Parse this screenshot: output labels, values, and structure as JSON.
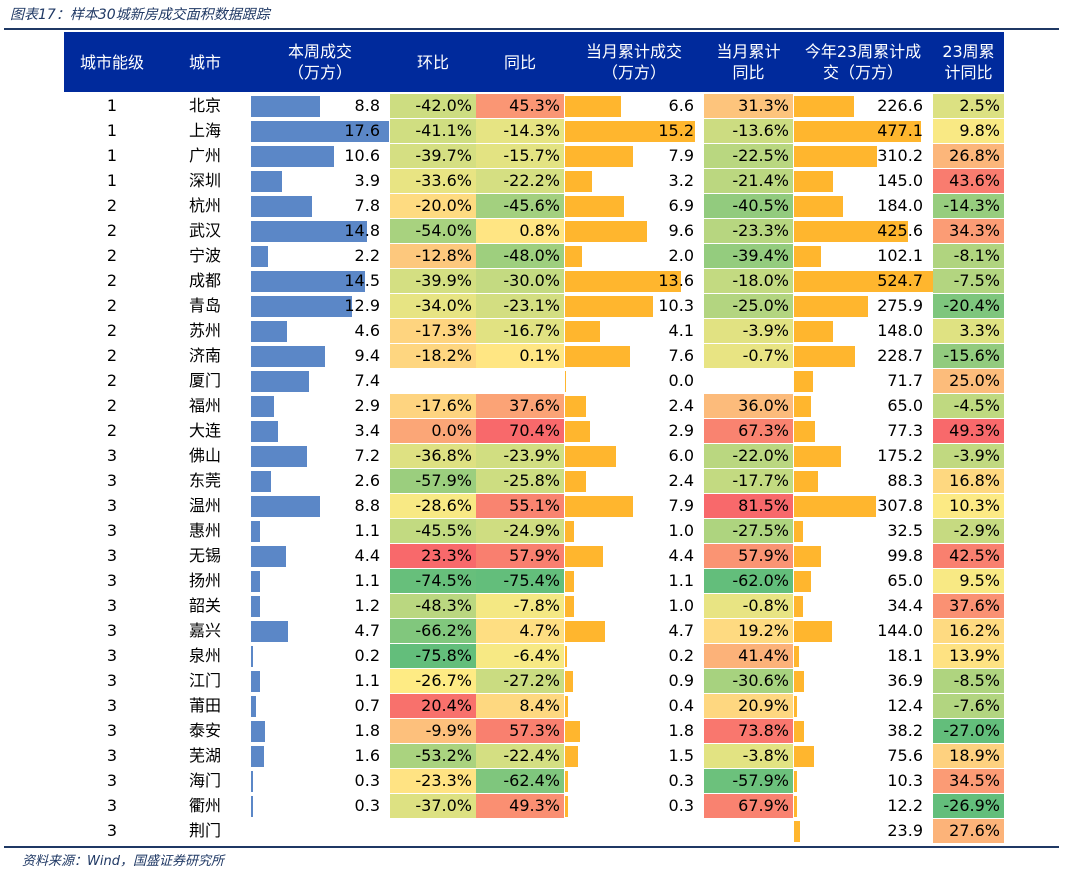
{
  "title": "图表17：样本30城新房成交面积数据跟踪",
  "source": "资料来源：Wind，国盛证券研究所",
  "colors": {
    "header_bg": "#002a9c",
    "header_text": "#ffffff",
    "bar_weekly": "#5b87c7",
    "bar_month": "#ffb62e",
    "scale_low": "#63be7b",
    "scale_mid": "#ffeb84",
    "scale_high": "#f8696b"
  },
  "columns": [
    "城市能级",
    "城市",
    "本周成交\n（万方）",
    "环比",
    "同比",
    "当月累计成交\n（万方）",
    "当月累计\n同比",
    "今年23周累计成\n交（万方）",
    "23周累\n计同比"
  ],
  "rows": [
    {
      "tier": "1",
      "city": "北京",
      "weekly": "8.8",
      "wow": "-42.0%",
      "yoy": "45.3%",
      "month": "6.6",
      "month_yoy": "31.3%",
      "ytd": "226.6",
      "ytd_yoy": "2.5%"
    },
    {
      "tier": "1",
      "city": "上海",
      "weekly": "17.6",
      "wow": "-41.1%",
      "yoy": "-14.3%",
      "month": "15.2",
      "month_yoy": "-13.6%",
      "ytd": "477.1",
      "ytd_yoy": "9.8%"
    },
    {
      "tier": "1",
      "city": "广州",
      "weekly": "10.6",
      "wow": "-39.7%",
      "yoy": "-15.7%",
      "month": "7.9",
      "month_yoy": "-22.5%",
      "ytd": "310.2",
      "ytd_yoy": "26.8%"
    },
    {
      "tier": "1",
      "city": "深圳",
      "weekly": "3.9",
      "wow": "-33.6%",
      "yoy": "-22.2%",
      "month": "3.2",
      "month_yoy": "-21.4%",
      "ytd": "145.0",
      "ytd_yoy": "43.6%"
    },
    {
      "tier": "2",
      "city": "杭州",
      "weekly": "7.8",
      "wow": "-20.0%",
      "yoy": "-45.6%",
      "month": "6.9",
      "month_yoy": "-40.5%",
      "ytd": "184.0",
      "ytd_yoy": "-14.3%"
    },
    {
      "tier": "2",
      "city": "武汉",
      "weekly": "14.8",
      "wow": "-54.0%",
      "yoy": "0.8%",
      "month": "9.6",
      "month_yoy": "-23.3%",
      "ytd": "425.6",
      "ytd_yoy": "34.3%"
    },
    {
      "tier": "2",
      "city": "宁波",
      "weekly": "2.2",
      "wow": "-12.8%",
      "yoy": "-48.0%",
      "month": "2.0",
      "month_yoy": "-39.4%",
      "ytd": "102.1",
      "ytd_yoy": "-8.1%"
    },
    {
      "tier": "2",
      "city": "成都",
      "weekly": "14.5",
      "wow": "-39.9%",
      "yoy": "-30.0%",
      "month": "13.6",
      "month_yoy": "-18.0%",
      "ytd": "524.7",
      "ytd_yoy": "-7.5%"
    },
    {
      "tier": "2",
      "city": "青岛",
      "weekly": "12.9",
      "wow": "-34.0%",
      "yoy": "-23.1%",
      "month": "10.3",
      "month_yoy": "-25.0%",
      "ytd": "275.9",
      "ytd_yoy": "-20.4%"
    },
    {
      "tier": "2",
      "city": "苏州",
      "weekly": "4.6",
      "wow": "-17.3%",
      "yoy": "-16.7%",
      "month": "4.1",
      "month_yoy": "-3.9%",
      "ytd": "148.0",
      "ytd_yoy": "3.3%"
    },
    {
      "tier": "2",
      "city": "济南",
      "weekly": "9.4",
      "wow": "-18.2%",
      "yoy": "0.1%",
      "month": "7.6",
      "month_yoy": "-0.7%",
      "ytd": "228.7",
      "ytd_yoy": "-15.6%"
    },
    {
      "tier": "2",
      "city": "厦门",
      "weekly": "7.4",
      "wow": "",
      "yoy": "",
      "month": "0.0",
      "month_yoy": "",
      "ytd": "71.7",
      "ytd_yoy": "25.0%"
    },
    {
      "tier": "2",
      "city": "福州",
      "weekly": "2.9",
      "wow": "-17.6%",
      "yoy": "37.6%",
      "month": "2.4",
      "month_yoy": "36.0%",
      "ytd": "65.0",
      "ytd_yoy": "-4.5%"
    },
    {
      "tier": "2",
      "city": "大连",
      "weekly": "3.4",
      "wow": "0.0%",
      "yoy": "70.4%",
      "month": "2.9",
      "month_yoy": "67.3%",
      "ytd": "77.3",
      "ytd_yoy": "49.3%"
    },
    {
      "tier": "3",
      "city": "佛山",
      "weekly": "7.2",
      "wow": "-36.8%",
      "yoy": "-23.9%",
      "month": "6.0",
      "month_yoy": "-22.0%",
      "ytd": "175.2",
      "ytd_yoy": "-3.9%"
    },
    {
      "tier": "3",
      "city": "东莞",
      "weekly": "2.6",
      "wow": "-57.9%",
      "yoy": "-25.8%",
      "month": "2.4",
      "month_yoy": "-17.7%",
      "ytd": "88.3",
      "ytd_yoy": "16.8%"
    },
    {
      "tier": "3",
      "city": "温州",
      "weekly": "8.8",
      "wow": "-28.6%",
      "yoy": "55.1%",
      "month": "7.9",
      "month_yoy": "81.5%",
      "ytd": "307.8",
      "ytd_yoy": "10.3%"
    },
    {
      "tier": "3",
      "city": "惠州",
      "weekly": "1.1",
      "wow": "-45.5%",
      "yoy": "-24.9%",
      "month": "1.0",
      "month_yoy": "-27.5%",
      "ytd": "32.5",
      "ytd_yoy": "-2.9%"
    },
    {
      "tier": "3",
      "city": "无锡",
      "weekly": "4.4",
      "wow": "23.3%",
      "yoy": "57.9%",
      "month": "4.4",
      "month_yoy": "57.9%",
      "ytd": "99.8",
      "ytd_yoy": "42.5%"
    },
    {
      "tier": "3",
      "city": "扬州",
      "weekly": "1.1",
      "wow": "-74.5%",
      "yoy": "-75.4%",
      "month": "1.1",
      "month_yoy": "-62.0%",
      "ytd": "65.0",
      "ytd_yoy": "9.5%"
    },
    {
      "tier": "3",
      "city": "韶关",
      "weekly": "1.2",
      "wow": "-48.3%",
      "yoy": "-7.8%",
      "month": "1.0",
      "month_yoy": "-0.8%",
      "ytd": "34.4",
      "ytd_yoy": "37.6%"
    },
    {
      "tier": "3",
      "city": "嘉兴",
      "weekly": "4.7",
      "wow": "-66.2%",
      "yoy": "4.7%",
      "month": "4.7",
      "month_yoy": "19.2%",
      "ytd": "144.0",
      "ytd_yoy": "16.2%"
    },
    {
      "tier": "3",
      "city": "泉州",
      "weekly": "0.2",
      "wow": "-75.8%",
      "yoy": "-6.4%",
      "month": "0.2",
      "month_yoy": "41.4%",
      "ytd": "18.1",
      "ytd_yoy": "13.9%"
    },
    {
      "tier": "3",
      "city": "江门",
      "weekly": "1.1",
      "wow": "-26.7%",
      "yoy": "-27.2%",
      "month": "0.9",
      "month_yoy": "-30.6%",
      "ytd": "36.9",
      "ytd_yoy": "-8.5%"
    },
    {
      "tier": "3",
      "city": "莆田",
      "weekly": "0.7",
      "wow": "20.4%",
      "yoy": "8.4%",
      "month": "0.4",
      "month_yoy": "20.9%",
      "ytd": "12.4",
      "ytd_yoy": "-7.6%"
    },
    {
      "tier": "3",
      "city": "泰安",
      "weekly": "1.8",
      "wow": "-9.9%",
      "yoy": "57.3%",
      "month": "1.8",
      "month_yoy": "73.8%",
      "ytd": "38.2",
      "ytd_yoy": "-27.0%"
    },
    {
      "tier": "3",
      "city": "芜湖",
      "weekly": "1.6",
      "wow": "-53.2%",
      "yoy": "-22.4%",
      "month": "1.5",
      "month_yoy": "-3.8%",
      "ytd": "75.6",
      "ytd_yoy": "18.9%"
    },
    {
      "tier": "3",
      "city": "海门",
      "weekly": "0.3",
      "wow": "-23.3%",
      "yoy": "-62.4%",
      "month": "0.3",
      "month_yoy": "-57.9%",
      "ytd": "10.3",
      "ytd_yoy": "34.5%"
    },
    {
      "tier": "3",
      "city": "衢州",
      "weekly": "0.3",
      "wow": "-37.0%",
      "yoy": "49.3%",
      "month": "0.3",
      "month_yoy": "67.9%",
      "ytd": "12.2",
      "ytd_yoy": "-26.9%"
    },
    {
      "tier": "3",
      "city": "荆门",
      "weekly": "",
      "wow": "",
      "yoy": "",
      "month": "",
      "month_yoy": "",
      "ytd": "23.9",
      "ytd_yoy": "27.6%"
    }
  ]
}
